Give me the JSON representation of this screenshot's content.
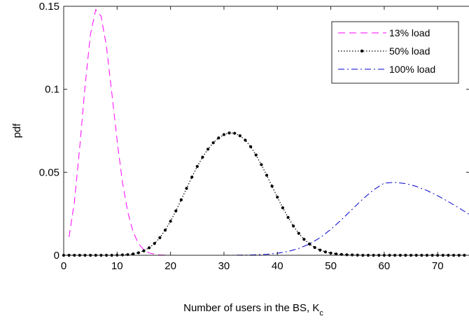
{
  "chart_data": {
    "type": "line",
    "xlabel": "Number of users in the BS, K",
    "xlabel_sub": "c",
    "ylabel": "pdf",
    "xlim": [
      0,
      76
    ],
    "ylim": [
      0,
      0.15
    ],
    "xticks": [
      0,
      10,
      20,
      30,
      40,
      50,
      60,
      70
    ],
    "yticks": [
      0,
      0.05,
      0.1,
      0.15
    ],
    "ytick_labels": [
      "0",
      "0.05",
      "0.1",
      "0.15"
    ],
    "grid": false,
    "legend_position": "top-right",
    "series": [
      {
        "name": "13% load",
        "color": "#ff00ff",
        "style": "dashed",
        "x": [
          1,
          2,
          3,
          4,
          5,
          6,
          7,
          8,
          9,
          10,
          11,
          12,
          13,
          14,
          15,
          16,
          17,
          18,
          19,
          20,
          22,
          24,
          26,
          30,
          40,
          50,
          60,
          76
        ],
        "y": [
          0.011,
          0.032,
          0.065,
          0.102,
          0.133,
          0.148,
          0.144,
          0.126,
          0.098,
          0.069,
          0.044,
          0.026,
          0.014,
          0.007,
          0.0033,
          0.0014,
          0.0006,
          0.0002,
          0.0001,
          0,
          0,
          0,
          0,
          0,
          0,
          0,
          0,
          0
        ]
      },
      {
        "name": "50% load",
        "color": "#000000",
        "style": "dotted-markers",
        "x": [
          0,
          1,
          2,
          3,
          4,
          5,
          6,
          7,
          8,
          9,
          10,
          11,
          12,
          13,
          14,
          15,
          16,
          17,
          18,
          19,
          20,
          21,
          22,
          23,
          24,
          25,
          26,
          27,
          28,
          29,
          30,
          31,
          32,
          33,
          34,
          35,
          36,
          37,
          38,
          39,
          40,
          41,
          42,
          43,
          44,
          45,
          46,
          47,
          48,
          49,
          50,
          51,
          52,
          53,
          54,
          55,
          56,
          57,
          58,
          59,
          60,
          61,
          62,
          63,
          64,
          65,
          66,
          67,
          68,
          69,
          70,
          71,
          72,
          73,
          74,
          75
        ],
        "y": [
          0,
          0,
          0,
          0,
          0,
          0,
          0,
          0,
          0,
          0,
          0.0001,
          0.0002,
          0.0004,
          0.0008,
          0.0015,
          0.0027,
          0.0045,
          0.0071,
          0.0106,
          0.0151,
          0.0205,
          0.0267,
          0.0334,
          0.0403,
          0.0471,
          0.0535,
          0.0591,
          0.0639,
          0.0678,
          0.0707,
          0.0727,
          0.0737,
          0.0735,
          0.072,
          0.0693,
          0.0654,
          0.0604,
          0.0546,
          0.0482,
          0.0416,
          0.035,
          0.0286,
          0.0228,
          0.0176,
          0.0132,
          0.0096,
          0.0068,
          0.0047,
          0.0031,
          0.002,
          0.0013,
          0.0008,
          0.0005,
          0.0003,
          0.0002,
          0.0001,
          0,
          0,
          0,
          0,
          0,
          0,
          0,
          0,
          0,
          0,
          0,
          0,
          0,
          0,
          0,
          0,
          0,
          0,
          0,
          0
        ]
      },
      {
        "name": "100% load",
        "color": "#0000cc",
        "style": "dash-dot",
        "x": [
          0,
          10,
          20,
          30,
          35,
          38,
          40,
          42,
          44,
          46,
          48,
          50,
          52,
          54,
          56,
          58,
          60,
          62,
          64,
          66,
          68,
          70,
          72,
          74,
          76
        ],
        "y": [
          0,
          0,
          0,
          0,
          0.0002,
          0.0006,
          0.0012,
          0.0023,
          0.0041,
          0.0068,
          0.0106,
          0.0156,
          0.0214,
          0.0277,
          0.0339,
          0.0394,
          0.0435,
          0.0439,
          0.0432,
          0.0415,
          0.039,
          0.0359,
          0.0323,
          0.0285,
          0.0244
        ]
      }
    ]
  }
}
